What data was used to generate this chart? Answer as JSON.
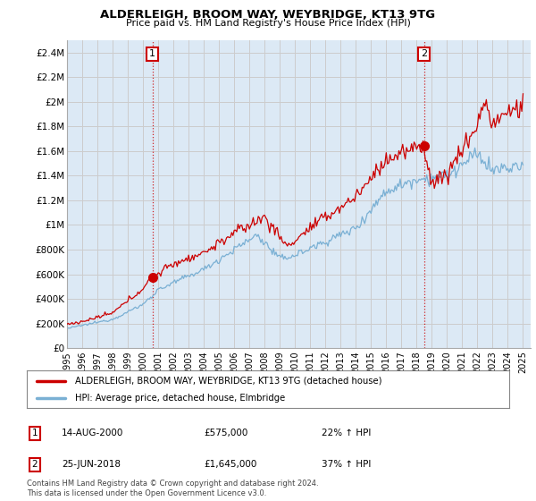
{
  "title": "ALDERLEIGH, BROOM WAY, WEYBRIDGE, KT13 9TG",
  "subtitle": "Price paid vs. HM Land Registry's House Price Index (HPI)",
  "xlim_start": 1995.0,
  "xlim_end": 2025.5,
  "ylim_bottom": 0,
  "ylim_top": 2500000,
  "yticks": [
    0,
    200000,
    400000,
    600000,
    800000,
    1000000,
    1200000,
    1400000,
    1600000,
    1800000,
    2000000,
    2200000,
    2400000
  ],
  "ytick_labels": [
    "£0",
    "£200K",
    "£400K",
    "£600K",
    "£800K",
    "£1M",
    "£1.2M",
    "£1.4M",
    "£1.6M",
    "£1.8M",
    "£2M",
    "£2.2M",
    "£2.4M"
  ],
  "xticks": [
    1995,
    1996,
    1997,
    1998,
    1999,
    2000,
    2001,
    2002,
    2003,
    2004,
    2005,
    2006,
    2007,
    2008,
    2009,
    2010,
    2011,
    2012,
    2013,
    2014,
    2015,
    2016,
    2017,
    2018,
    2019,
    2020,
    2021,
    2022,
    2023,
    2024,
    2025
  ],
  "sale1_x": 2000.62,
  "sale1_y": 575000,
  "sale1_label": "1",
  "sale2_x": 2018.48,
  "sale2_y": 1645000,
  "sale2_label": "2",
  "marker_color": "#cc0000",
  "line1_color": "#cc0000",
  "line2_color": "#7ab0d4",
  "grid_color": "#cccccc",
  "bg_color": "#ffffff",
  "plot_bg_color": "#dce9f5",
  "legend_line1": "ALDERLEIGH, BROOM WAY, WEYBRIDGE, KT13 9TG (detached house)",
  "legend_line2": "HPI: Average price, detached house, Elmbridge",
  "annotation1_date": "14-AUG-2000",
  "annotation1_price": "£575,000",
  "annotation1_hpi": "22% ↑ HPI",
  "annotation2_date": "25-JUN-2018",
  "annotation2_price": "£1,645,000",
  "annotation2_hpi": "37% ↑ HPI",
  "footer": "Contains HM Land Registry data © Crown copyright and database right 2024.\nThis data is licensed under the Open Government Licence v3.0."
}
